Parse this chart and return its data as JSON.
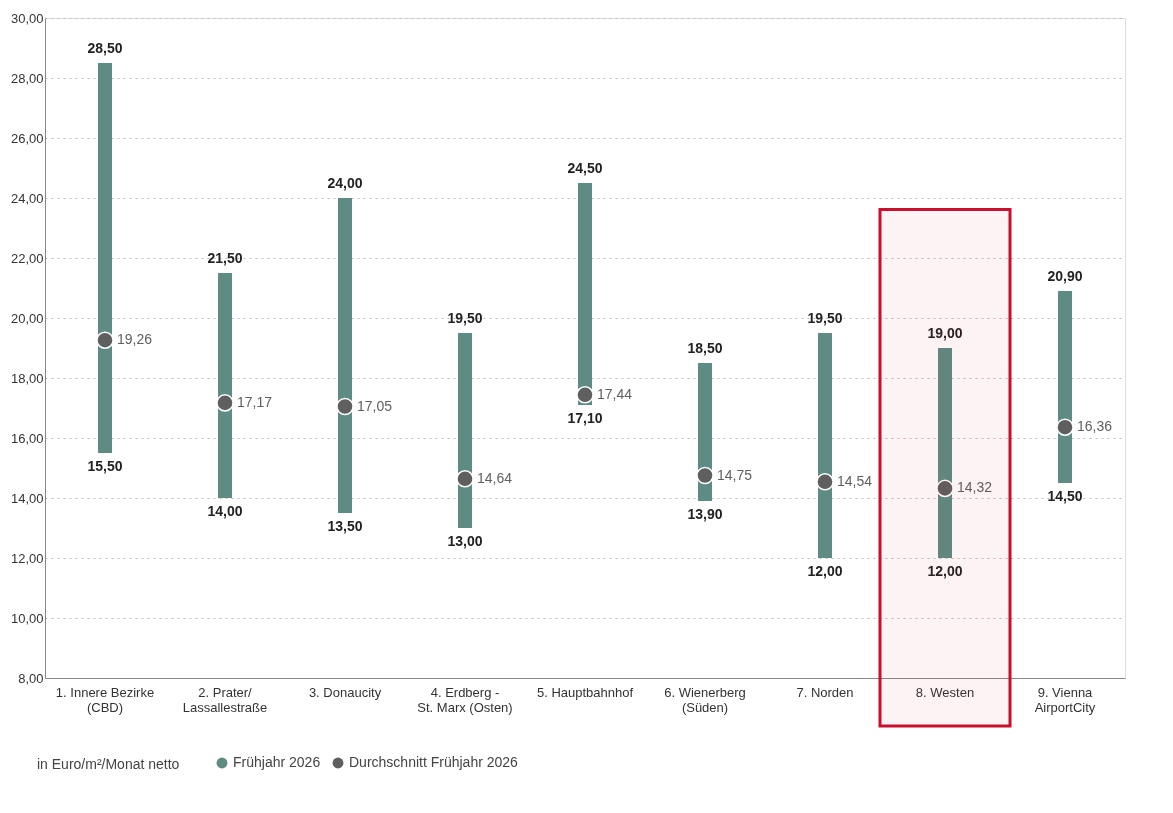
{
  "chart_data": {
    "type": "bar",
    "categories": [
      "1. Innere Bezirke\n(CBD)",
      "2. Prater/\nLassallestraße",
      "3. Donaucity",
      "4. Erdberg -\nSt. Marx (Osten)",
      "5. Hauptbahnhof",
      "6. Wienerberg\n(Süden)",
      "7. Norden",
      "8. Westen",
      "9. Vienna\nAirportCity"
    ],
    "series": [
      {
        "name": "Frühjahr 2026",
        "base": [
          15.5,
          14.0,
          13.5,
          13.0,
          17.1,
          13.9,
          12.0,
          12.0,
          14.5
        ],
        "color": "#5e8c84",
        "values": [
          13.0,
          7.5,
          10.5,
          6.5,
          7.4,
          4.6,
          7.5,
          7.0,
          6.4
        ]
      },
      {
        "name": "Durchschnitt Frühjahr 2026",
        "type": "scatter",
        "color": "#5f5f5f",
        "values": [
          19.26,
          17.17,
          17.05,
          14.64,
          17.44,
          14.75,
          14.54,
          14.32,
          16.36
        ],
        "value_labels": [
          "19,26",
          "17,17",
          "17,05",
          "14,64",
          "17,44",
          "14,75",
          "14,54",
          "14,32",
          "16,36"
        ]
      }
    ],
    "ylim": [
      8,
      30
    ],
    "yticks": [
      {
        "value": 8,
        "label": "8,00"
      },
      {
        "value": 10,
        "label": "10,00"
      },
      {
        "value": 12,
        "label": "12,00"
      },
      {
        "value": 14,
        "label": "14,00"
      },
      {
        "value": 16,
        "label": "16,00"
      },
      {
        "value": 18,
        "label": "18,00"
      },
      {
        "value": 20,
        "label": "20,00"
      },
      {
        "value": 22,
        "label": "22,00"
      },
      {
        "value": 24,
        "label": "24,00"
      },
      {
        "value": 26,
        "label": "26,00"
      },
      {
        "value": 28,
        "label": "28,00"
      },
      {
        "value": 30,
        "label": "30,00"
      }
    ],
    "grid": "y",
    "legend": "bottom",
    "marker": "circle",
    "bands": [
      {
        "axis": "x",
        "from": "8. Westen",
        "to": "8. Westen",
        "color": "#c8102e"
      }
    ],
    "annotations": [
      "in Euro/m²/Monat netto",
      {
        "text": "28,50",
        "x": "1. Innere Bezirke\n(CBD)",
        "y": 28.5
      },
      {
        "text": "15,50",
        "x": "1. Innere Bezirke\n(CBD)",
        "y": 15.5
      },
      {
        "text": "21,50",
        "x": "2. Prater/\nLassallestraße",
        "y": 21.5
      },
      {
        "text": "14,00",
        "x": "2. Prater/\nLassallestraße",
        "y": 14.0
      },
      {
        "text": "24,00",
        "x": "3. Donaucity",
        "y": 24.0
      },
      {
        "text": "13,50",
        "x": "3. Donaucity",
        "y": 13.5
      },
      {
        "text": "19,50",
        "x": "4. Erdberg -\nSt. Marx (Osten)",
        "y": 19.5
      },
      {
        "text": "13,00",
        "x": "4. Erdberg -\nSt. Marx (Osten)",
        "y": 13.0
      },
      {
        "text": "24,50",
        "x": "5. Hauptbahnhof",
        "y": 24.5
      },
      {
        "text": "17,10",
        "x": "5. Hauptbahnhof",
        "y": 17.1
      },
      {
        "text": "18,50",
        "x": "6. Wienerberg\n(Süden)",
        "y": 18.5
      },
      {
        "text": "13,90",
        "x": "6. Wienerberg\n(Süden)",
        "y": 13.9
      },
      {
        "text": "19,50",
        "x": "7. Norden",
        "y": 19.5
      },
      {
        "text": "12,00",
        "x": "7. Norden",
        "y": 12.0
      },
      {
        "text": "19,00",
        "x": "8. Westen",
        "y": 19.0
      },
      {
        "text": "12,00",
        "x": "8. Westen",
        "y": 12.0
      },
      {
        "text": "20,90",
        "x": "9. Vienna\nAirportCity",
        "y": 20.9
      },
      {
        "text": "14,50",
        "x": "9. Vienna\nAirportCity",
        "y": 14.5
      }
    ]
  }
}
